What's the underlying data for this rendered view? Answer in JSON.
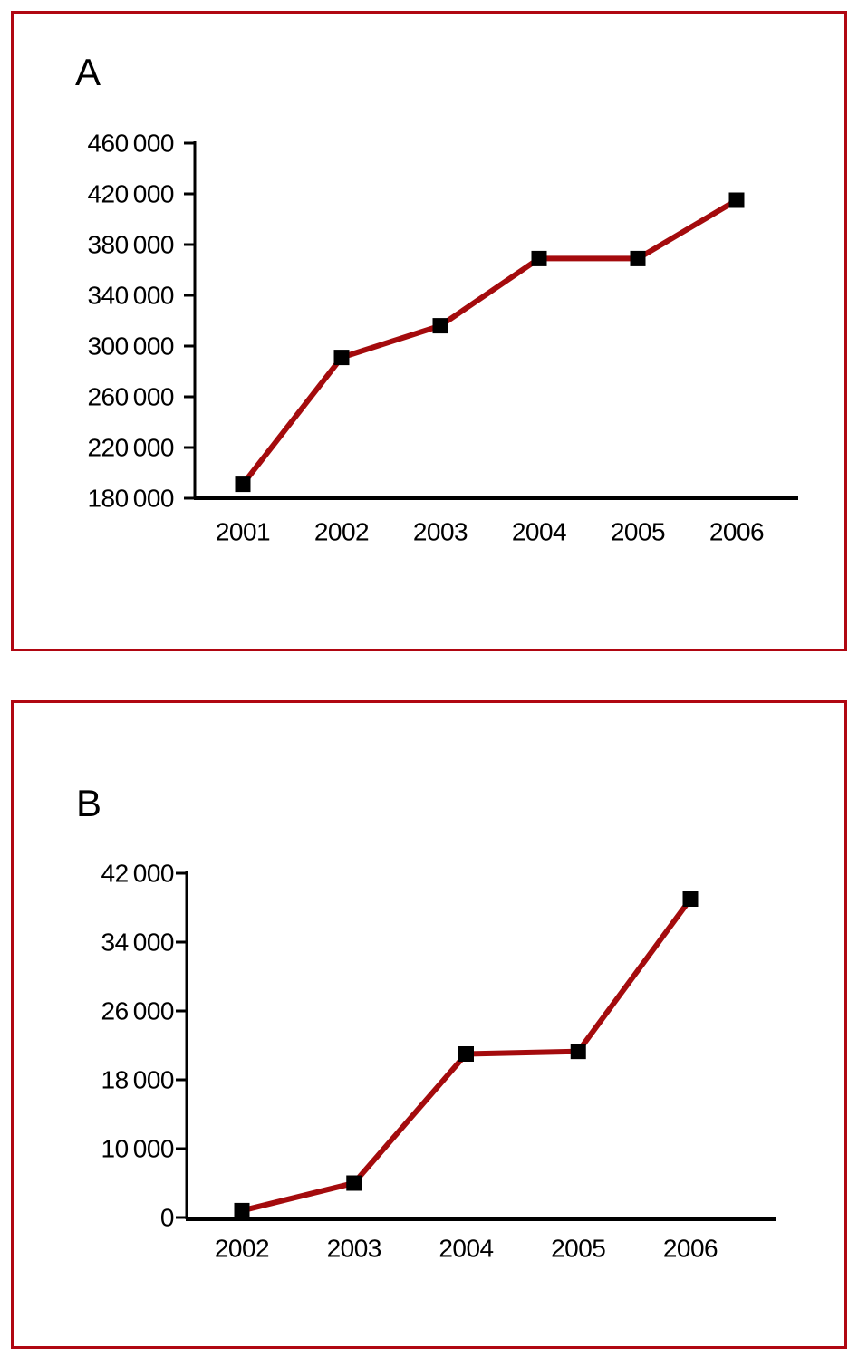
{
  "page": {
    "background": "#ffffff",
    "frame_color": "#b00712",
    "line_color": "#a40b0d",
    "marker_color": "#000000",
    "axis_color": "#000000"
  },
  "chart_data": [
    {
      "type": "line",
      "panel_label": "A",
      "title": "",
      "xlabel": "",
      "ylabel": "",
      "series_name": "",
      "categories": [
        "2001",
        "2002",
        "2003",
        "2004",
        "2005",
        "2006"
      ],
      "values": [
        191000,
        291000,
        316000,
        369000,
        369000,
        415000
      ],
      "y_ticks": [
        {
          "label": "460 000",
          "value": 460000
        },
        {
          "label": "420 000",
          "value": 420000
        },
        {
          "label": "380 000",
          "value": 380000
        },
        {
          "label": "340 000",
          "value": 340000
        },
        {
          "label": "300 000",
          "value": 300000
        },
        {
          "label": "260 000",
          "value": 260000
        },
        {
          "label": "220 000",
          "value": 220000
        },
        {
          "label": "180 000",
          "value": 180000
        }
      ],
      "ylim": [
        180000,
        460000
      ],
      "grid": false,
      "legend": "none",
      "marker": "square"
    },
    {
      "type": "line",
      "panel_label": "B",
      "title": "",
      "xlabel": "",
      "ylabel": "",
      "series_name": "",
      "categories": [
        "2002",
        "2003",
        "2004",
        "2005",
        "2006"
      ],
      "values": [
        1000,
        5000,
        21000,
        21300,
        39000
      ],
      "y_ticks": [
        {
          "label": "42 000",
          "value": 42000
        },
        {
          "label": "34 000",
          "value": 34000
        },
        {
          "label": "26 000",
          "value": 26000
        },
        {
          "label": "18 000",
          "value": 18000
        },
        {
          "label": "10 000",
          "value": 10000
        },
        {
          "label": "0",
          "value": 0
        }
      ],
      "ylim": [
        0,
        42000
      ],
      "grid": false,
      "legend": "none",
      "marker": "square"
    }
  ]
}
